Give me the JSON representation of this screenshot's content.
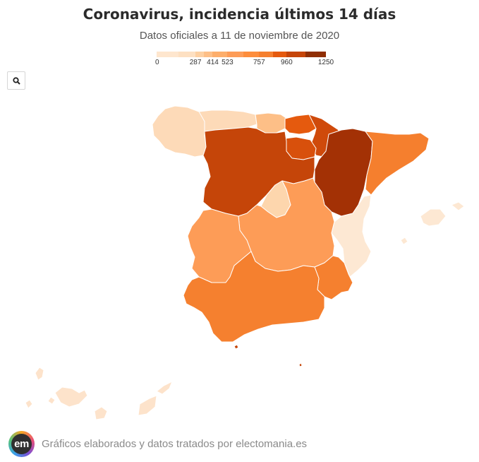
{
  "header": {
    "title": "Coronavirus, incidencia últimos 14 días",
    "subtitle": "Datos oficiales a 11 de noviembre de 2020"
  },
  "legend": {
    "ticks": [
      "0",
      "287",
      "414",
      "523",
      "757",
      "960",
      "1250"
    ],
    "tick_values": [
      0,
      287,
      414,
      523,
      757,
      960,
      1250
    ],
    "colors": [
      "#fee6ce",
      "#fdd0a2",
      "#fdae6b",
      "#fd8d3c",
      "#f16913",
      "#d94801",
      "#a63603",
      "#7f2704"
    ],
    "max": 1250
  },
  "toolbar": {
    "zoom_icon": "search-icon"
  },
  "map": {
    "regions": [
      {
        "name": "Galicia",
        "color": "#fddab8"
      },
      {
        "name": "Asturias",
        "color": "#fddab8"
      },
      {
        "name": "Cantabria",
        "color": "#fdbf87"
      },
      {
        "name": "País Vasco",
        "color": "#e55a0e"
      },
      {
        "name": "Navarra",
        "color": "#cf4a0b"
      },
      {
        "name": "La Rioja",
        "color": "#d8500c"
      },
      {
        "name": "Aragón",
        "color": "#a33105"
      },
      {
        "name": "Cataluña",
        "color": "#f57f2e"
      },
      {
        "name": "Castilla y León",
        "color": "#c54509"
      },
      {
        "name": "Madrid",
        "color": "#fdd6ad"
      },
      {
        "name": "Castilla-La Mancha",
        "color": "#fd9c57"
      },
      {
        "name": "Extremadura",
        "color": "#fd9c57"
      },
      {
        "name": "Comunitat Valenciana",
        "color": "#fde8d3"
      },
      {
        "name": "Murcia",
        "color": "#f5802f"
      },
      {
        "name": "Andalucía",
        "color": "#f5802f"
      },
      {
        "name": "Illes Balears",
        "color": "#fde8d3"
      },
      {
        "name": "Canarias",
        "color": "#fde3cb"
      },
      {
        "name": "Ceuta",
        "color": "#c54509"
      },
      {
        "name": "Melilla",
        "color": "#c54509"
      }
    ],
    "border_color": "#ffffff"
  },
  "footer": {
    "credit": "Gráficos elaborados y datos tratados por electomania.es",
    "logo_text": "em"
  }
}
